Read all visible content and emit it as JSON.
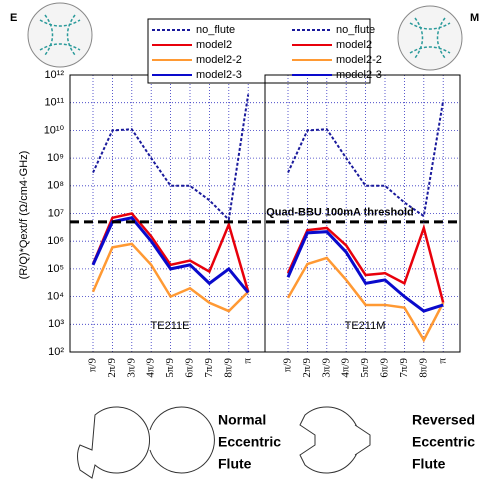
{
  "chart_data": [
    {
      "type": "line",
      "title": "E",
      "annotation": "TE211E",
      "log_y": true,
      "grid": true,
      "y_label": "(R/Q)*Qext/f  (Ω/cm4·GHz)",
      "categories": [
        "π/9",
        "2π/9",
        "3π/9",
        "4π/9",
        "5π/9",
        "6π/9",
        "7π/9",
        "8π/9",
        "π"
      ],
      "ylim": [
        100,
        1000000000000
      ],
      "yticks": [
        {
          "value": 100,
          "label": "10²"
        },
        {
          "value": 1000,
          "label": "10³"
        },
        {
          "value": 10000,
          "label": "10⁴"
        },
        {
          "value": 100000,
          "label": "10⁵"
        },
        {
          "value": 1000000,
          "label": "10⁶"
        },
        {
          "value": 10000000,
          "label": "10⁷"
        },
        {
          "value": 100000000,
          "label": "10⁸"
        },
        {
          "value": 1000000000,
          "label": "10⁹"
        },
        {
          "value": 10000000000,
          "label": "10¹⁰"
        },
        {
          "value": 100000000000,
          "label": "10¹¹"
        },
        {
          "value": 1000000000000,
          "label": "10¹²"
        }
      ],
      "threshold": {
        "value": 5000000,
        "label": "Quad-BBU 100mA threshold"
      },
      "caption": [
        "Normal",
        "Eccentric",
        "Flute"
      ],
      "series": [
        {
          "name": "no_flute",
          "color": "#1a1a9c",
          "values": [
            300000000,
            10000000000,
            11000000000,
            1000000000,
            100000000,
            100000000,
            30000000,
            6000000,
            200000000000
          ]
        },
        {
          "name": "model2",
          "color": "#e8000b",
          "values": [
            150000,
            7000000,
            10000000,
            1500000,
            140000,
            200000,
            80000,
            4000000,
            15000
          ]
        },
        {
          "name": "model2-2",
          "color": "#ff9933",
          "values": [
            15000,
            600000,
            800000,
            140000,
            10000,
            20000,
            6000,
            3000,
            15000
          ]
        },
        {
          "name": "model2-3",
          "color": "#0a0acc",
          "values": [
            140000,
            5000000,
            7000000,
            1000000,
            100000,
            140000,
            30000,
            100000,
            14000
          ]
        }
      ]
    },
    {
      "type": "line",
      "title": "M",
      "annotation": "TE211M",
      "log_y": true,
      "grid": true,
      "categories": [
        "π/9",
        "2π/9",
        "3π/9",
        "4π/9",
        "5π/9",
        "6π/9",
        "7π/9",
        "8π/9",
        "π"
      ],
      "ylim": [
        100,
        1000000000000
      ],
      "yticks": [
        100,
        1000,
        10000,
        100000,
        1000000,
        10000000,
        100000000,
        1000000000,
        10000000000,
        100000000000,
        1000000000000
      ],
      "caption": [
        "Reversed",
        "Eccentric",
        "Flute"
      ],
      "series": [
        {
          "name": "no_flute",
          "color": "#1a1a9c",
          "values": [
            300000000,
            10000000000,
            11000000000,
            1000000000,
            100000000,
            100000000,
            25000000,
            8000000,
            120000000000
          ]
        },
        {
          "name": "model2",
          "color": "#e8000b",
          "values": [
            70000,
            2500000,
            3000000,
            700000,
            60000,
            70000,
            30000,
            3000000,
            6000
          ]
        },
        {
          "name": "model2-2",
          "color": "#ff9933",
          "values": [
            9000,
            150000,
            250000,
            40000,
            5000,
            5000,
            4000,
            270,
            6000
          ]
        },
        {
          "name": "model2-3",
          "color": "#0a0acc",
          "values": [
            50000,
            2000000,
            2200000,
            400000,
            30000,
            40000,
            10000,
            3000,
            5000
          ]
        }
      ]
    }
  ]
}
